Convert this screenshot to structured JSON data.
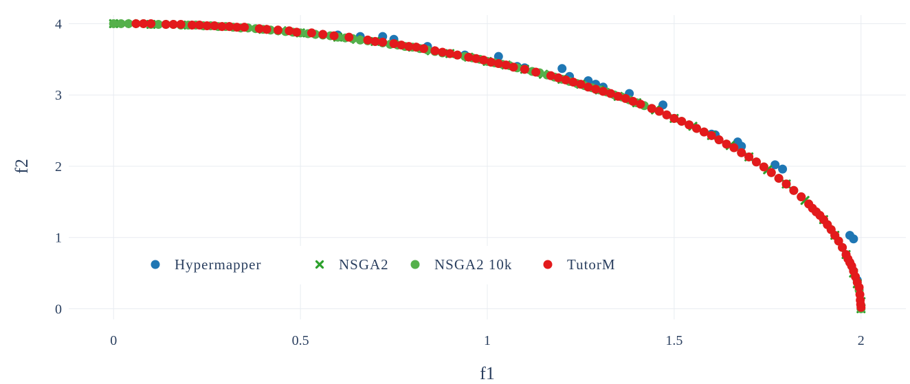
{
  "chart_data": {
    "type": "scatter",
    "xlabel": "f1",
    "ylabel": "f2",
    "xlim": [
      -0.12,
      2.12
    ],
    "ylim": [
      -0.15,
      4.12
    ],
    "xticks": [
      0,
      0.5,
      1,
      1.5,
      2
    ],
    "xtick_labels": [
      "0",
      "0.5",
      "1",
      "1.5",
      "2"
    ],
    "yticks": [
      0,
      1,
      2,
      3,
      4
    ],
    "ytick_labels": [
      "0",
      "1",
      "2",
      "3",
      "4"
    ],
    "grid": true,
    "legend_position": "bottom-left",
    "series": [
      {
        "name": "Hypermapper",
        "marker": "circle",
        "color": "#1f77b4",
        "points": [
          [
            0.6,
            3.84
          ],
          [
            0.66,
            3.82
          ],
          [
            0.72,
            3.82
          ],
          [
            0.75,
            3.78
          ],
          [
            0.84,
            3.68
          ],
          [
            0.94,
            3.56
          ],
          [
            1.03,
            3.54
          ],
          [
            1.08,
            3.4
          ],
          [
            1.1,
            3.38
          ],
          [
            1.2,
            3.37
          ],
          [
            1.22,
            3.26
          ],
          [
            1.27,
            3.2
          ],
          [
            1.29,
            3.15
          ],
          [
            1.31,
            3.11
          ],
          [
            1.38,
            3.02
          ],
          [
            1.47,
            2.86
          ],
          [
            1.6,
            2.45
          ],
          [
            1.61,
            2.44
          ],
          [
            1.67,
            2.34
          ],
          [
            1.68,
            2.28
          ],
          [
            1.77,
            2.02
          ],
          [
            1.79,
            1.96
          ],
          [
            1.97,
            1.03
          ],
          [
            1.98,
            0.98
          ],
          [
            1.99,
            0.4
          ]
        ]
      },
      {
        "name": "NSGA2",
        "marker": "x",
        "color": "#2ca02c",
        "points": [
          [
            0.0,
            4.0
          ],
          [
            0.05,
            4.0
          ],
          [
            0.1,
            3.99
          ],
          [
            0.15,
            3.99
          ],
          [
            0.2,
            3.98
          ],
          [
            0.25,
            3.97
          ],
          [
            0.3,
            3.96
          ],
          [
            0.35,
            3.94
          ],
          [
            0.4,
            3.92
          ],
          [
            0.45,
            3.9
          ],
          [
            0.5,
            3.87
          ],
          [
            0.55,
            3.85
          ],
          [
            0.6,
            3.81
          ],
          [
            0.65,
            3.78
          ],
          [
            0.7,
            3.75
          ],
          [
            0.75,
            3.71
          ],
          [
            0.8,
            3.67
          ],
          [
            0.85,
            3.62
          ],
          [
            0.9,
            3.58
          ],
          [
            0.95,
            3.53
          ],
          [
            1.0,
            3.47
          ],
          [
            1.05,
            3.42
          ],
          [
            1.1,
            3.36
          ],
          [
            1.15,
            3.29
          ],
          [
            1.2,
            3.22
          ],
          [
            1.25,
            3.15
          ],
          [
            1.3,
            3.07
          ],
          [
            1.35,
            2.98
          ],
          [
            1.4,
            2.89
          ],
          [
            1.45,
            2.79
          ],
          [
            1.5,
            2.67
          ],
          [
            1.55,
            2.56
          ],
          [
            1.6,
            2.43
          ],
          [
            1.65,
            2.29
          ],
          [
            1.7,
            2.13
          ],
          [
            1.75,
            1.95
          ],
          [
            1.8,
            1.75
          ],
          [
            1.85,
            1.52
          ],
          [
            1.9,
            1.25
          ],
          [
            1.93,
            1.03
          ],
          [
            1.96,
            0.76
          ],
          [
            1.98,
            0.5
          ],
          [
            1.99,
            0.35
          ],
          [
            2.0,
            0.1
          ],
          [
            2.0,
            0.0
          ]
        ]
      },
      {
        "name": "NSGA2 10k",
        "marker": "circle",
        "color": "#55b04b",
        "points": [
          [
            0.0,
            4.0
          ],
          [
            0.02,
            4.0
          ],
          [
            0.04,
            4.0
          ],
          [
            0.06,
            4.0
          ],
          [
            0.08,
            4.0
          ],
          [
            0.1,
            3.99
          ],
          [
            0.12,
            3.99
          ],
          [
            0.14,
            3.99
          ],
          [
            0.16,
            3.99
          ],
          [
            0.18,
            3.98
          ],
          [
            0.2,
            3.98
          ],
          [
            0.22,
            3.98
          ],
          [
            0.24,
            3.97
          ],
          [
            0.26,
            3.97
          ],
          [
            0.28,
            3.96
          ],
          [
            0.3,
            3.96
          ],
          [
            0.32,
            3.95
          ],
          [
            0.34,
            3.94
          ],
          [
            0.36,
            3.94
          ],
          [
            0.38,
            3.93
          ],
          [
            0.4,
            3.92
          ],
          [
            0.42,
            3.91
          ],
          [
            0.44,
            3.9
          ],
          [
            0.46,
            3.89
          ],
          [
            0.48,
            3.88
          ],
          [
            0.5,
            3.87
          ],
          [
            0.52,
            3.86
          ],
          [
            0.54,
            3.85
          ],
          [
            0.56,
            3.84
          ],
          [
            0.58,
            3.83
          ],
          [
            0.6,
            3.81
          ],
          [
            0.62,
            3.8
          ],
          [
            0.64,
            3.79
          ],
          [
            0.66,
            3.77
          ],
          [
            0.68,
            3.76
          ],
          [
            0.7,
            3.75
          ],
          [
            0.72,
            3.73
          ],
          [
            0.74,
            3.71
          ],
          [
            0.76,
            3.7
          ],
          [
            0.78,
            3.68
          ],
          [
            0.8,
            3.67
          ],
          [
            0.82,
            3.65
          ],
          [
            0.84,
            3.63
          ],
          [
            0.86,
            3.61
          ],
          [
            0.88,
            3.59
          ],
          [
            0.9,
            3.58
          ],
          [
            0.92,
            3.56
          ],
          [
            0.94,
            3.54
          ],
          [
            0.96,
            3.52
          ],
          [
            0.98,
            3.5
          ],
          [
            1.0,
            3.47
          ],
          [
            1.02,
            3.45
          ],
          [
            1.04,
            3.43
          ],
          [
            1.06,
            3.41
          ],
          [
            1.08,
            3.38
          ],
          [
            1.1,
            3.36
          ],
          [
            1.12,
            3.33
          ],
          [
            1.14,
            3.31
          ],
          [
            1.16,
            3.28
          ],
          [
            1.18,
            3.25
          ],
          [
            1.2,
            3.22
          ],
          [
            1.22,
            3.19
          ],
          [
            1.24,
            3.16
          ],
          [
            1.26,
            3.13
          ],
          [
            1.28,
            3.1
          ],
          [
            1.3,
            3.07
          ],
          [
            1.32,
            3.04
          ],
          [
            1.34,
            3.0
          ],
          [
            1.36,
            2.97
          ],
          [
            1.38,
            2.93
          ],
          [
            1.4,
            2.89
          ],
          [
            1.42,
            2.85
          ],
          [
            1.44,
            2.81
          ],
          [
            1.46,
            2.77
          ],
          [
            1.48,
            2.72
          ],
          [
            1.5,
            2.67
          ],
          [
            1.52,
            2.63
          ],
          [
            1.54,
            2.58
          ],
          [
            1.56,
            2.53
          ],
          [
            1.58,
            2.48
          ],
          [
            1.6,
            2.43
          ],
          [
            1.62,
            2.37
          ],
          [
            1.64,
            2.31
          ],
          [
            1.66,
            2.26
          ],
          [
            1.68,
            2.19
          ],
          [
            1.7,
            2.13
          ],
          [
            1.72,
            2.06
          ],
          [
            1.74,
            1.99
          ],
          [
            1.76,
            1.91
          ],
          [
            1.78,
            1.83
          ],
          [
            1.8,
            1.75
          ],
          [
            1.82,
            1.66
          ],
          [
            1.84,
            1.57
          ],
          [
            1.86,
            1.47
          ],
          [
            1.88,
            1.36
          ],
          [
            1.9,
            1.25
          ],
          [
            1.91,
            1.18
          ],
          [
            1.92,
            1.11
          ],
          [
            1.93,
            1.03
          ],
          [
            1.94,
            0.95
          ],
          [
            1.95,
            0.86
          ],
          [
            1.96,
            0.76
          ],
          [
            1.97,
            0.65
          ],
          [
            1.98,
            0.53
          ],
          [
            1.99,
            0.37
          ],
          [
            1.995,
            0.26
          ],
          [
            2.0,
            0.0
          ]
        ]
      },
      {
        "name": "TutorM",
        "marker": "circle",
        "color": "#e31a1c",
        "points": [
          [
            0.06,
            4.0
          ],
          [
            0.08,
            4.0
          ],
          [
            0.1,
            4.0
          ],
          [
            0.14,
            3.99
          ],
          [
            0.16,
            3.99
          ],
          [
            0.18,
            3.99
          ],
          [
            0.21,
            3.98
          ],
          [
            0.23,
            3.98
          ],
          [
            0.25,
            3.97
          ],
          [
            0.27,
            3.97
          ],
          [
            0.29,
            3.96
          ],
          [
            0.31,
            3.96
          ],
          [
            0.33,
            3.95
          ],
          [
            0.35,
            3.95
          ],
          [
            0.39,
            3.93
          ],
          [
            0.41,
            3.92
          ],
          [
            0.44,
            3.91
          ],
          [
            0.47,
            3.9
          ],
          [
            0.49,
            3.88
          ],
          [
            0.53,
            3.87
          ],
          [
            0.56,
            3.85
          ],
          [
            0.59,
            3.83
          ],
          [
            0.63,
            3.81
          ],
          [
            0.68,
            3.77
          ],
          [
            0.7,
            3.75
          ],
          [
            0.72,
            3.74
          ],
          [
            0.75,
            3.72
          ],
          [
            0.77,
            3.7
          ],
          [
            0.79,
            3.68
          ],
          [
            0.81,
            3.67
          ],
          [
            0.83,
            3.65
          ],
          [
            0.86,
            3.62
          ],
          [
            0.88,
            3.6
          ],
          [
            0.9,
            3.58
          ],
          [
            0.92,
            3.56
          ],
          [
            0.95,
            3.53
          ],
          [
            0.97,
            3.51
          ],
          [
            0.99,
            3.49
          ],
          [
            1.01,
            3.46
          ],
          [
            1.03,
            3.44
          ],
          [
            1.05,
            3.42
          ],
          [
            1.07,
            3.39
          ],
          [
            1.1,
            3.36
          ],
          [
            1.13,
            3.32
          ],
          [
            1.17,
            3.27
          ],
          [
            1.19,
            3.24
          ],
          [
            1.21,
            3.21
          ],
          [
            1.23,
            3.18
          ],
          [
            1.25,
            3.15
          ],
          [
            1.27,
            3.11
          ],
          [
            1.29,
            3.08
          ],
          [
            1.31,
            3.05
          ],
          [
            1.33,
            3.02
          ],
          [
            1.35,
            2.98
          ],
          [
            1.37,
            2.95
          ],
          [
            1.39,
            2.91
          ],
          [
            1.41,
            2.87
          ],
          [
            1.44,
            2.81
          ],
          [
            1.46,
            2.77
          ],
          [
            1.48,
            2.72
          ],
          [
            1.5,
            2.67
          ],
          [
            1.52,
            2.63
          ],
          [
            1.54,
            2.58
          ],
          [
            1.56,
            2.53
          ],
          [
            1.58,
            2.48
          ],
          [
            1.6,
            2.43
          ],
          [
            1.62,
            2.37
          ],
          [
            1.64,
            2.31
          ],
          [
            1.66,
            2.26
          ],
          [
            1.68,
            2.19
          ],
          [
            1.7,
            2.13
          ],
          [
            1.72,
            2.06
          ],
          [
            1.74,
            1.99
          ],
          [
            1.76,
            1.91
          ],
          [
            1.78,
            1.83
          ],
          [
            1.8,
            1.75
          ],
          [
            1.82,
            1.66
          ],
          [
            1.84,
            1.57
          ],
          [
            1.86,
            1.47
          ],
          [
            1.87,
            1.41
          ],
          [
            1.88,
            1.36
          ],
          [
            1.89,
            1.31
          ],
          [
            1.9,
            1.25
          ],
          [
            1.91,
            1.18
          ],
          [
            1.92,
            1.11
          ],
          [
            1.93,
            1.03
          ],
          [
            1.94,
            0.95
          ],
          [
            1.95,
            0.86
          ],
          [
            1.96,
            0.76
          ],
          [
            1.965,
            0.7
          ],
          [
            1.97,
            0.65
          ],
          [
            1.975,
            0.6
          ],
          [
            1.98,
            0.53
          ],
          [
            1.985,
            0.45
          ],
          [
            1.99,
            0.37
          ],
          [
            1.995,
            0.3
          ],
          [
            1.997,
            0.2
          ],
          [
            1.998,
            0.12
          ],
          [
            1.999,
            0.06
          ],
          [
            2.0,
            0.02
          ]
        ]
      }
    ]
  }
}
